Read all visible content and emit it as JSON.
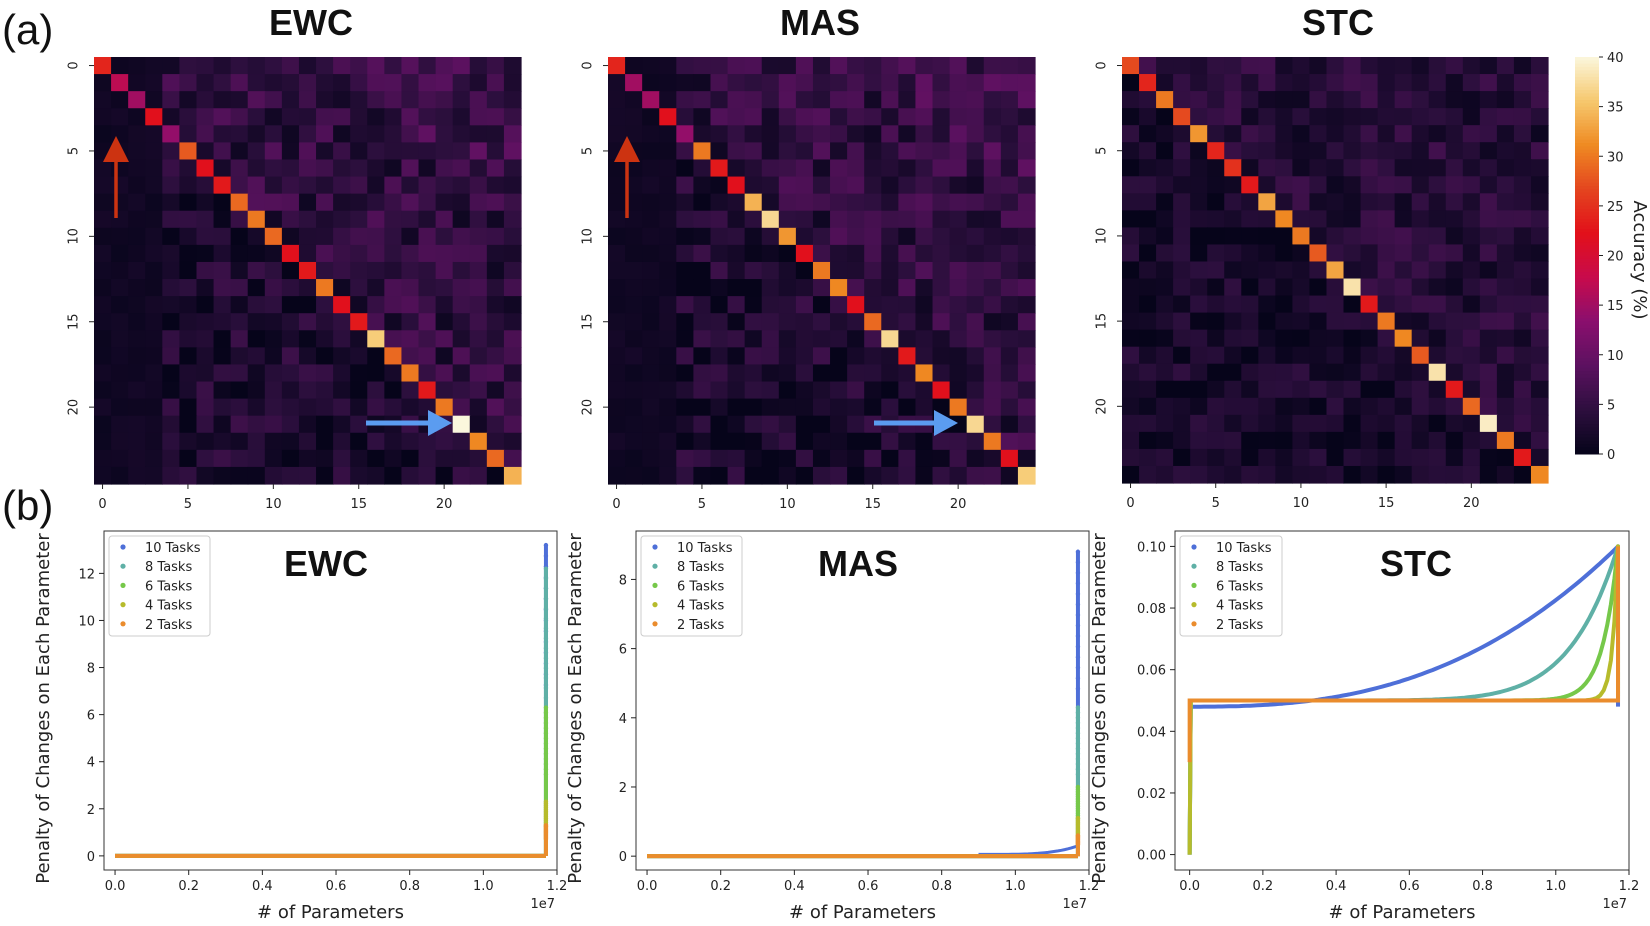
{
  "figure": {
    "label_a": "(a)",
    "label_b": "(b)"
  },
  "colors": {
    "arrow_up": "#cc3311",
    "arrow_right": "#5b9cf0",
    "cmap": [
      "#06041a",
      "#2d0f3e",
      "#5c1160",
      "#8a0f6e",
      "#c80b4c",
      "#e2101a",
      "#e4451f",
      "#ef8a22",
      "#f6c86e",
      "#fbf7dd"
    ],
    "series": {
      "10 Tasks": "#4e6fd8",
      "8 Tasks": "#5fb0a6",
      "6 Tasks": "#76c84a",
      "4 Tasks": "#b6bb2c",
      "2 Tasks": "#ea8c2d"
    }
  },
  "colorbar": {
    "label": "Accuracy (%)",
    "ticks": [
      "0",
      "5",
      "10",
      "15",
      "20",
      "25",
      "30",
      "35",
      "40"
    ],
    "vmin": 0,
    "vmax": 40
  },
  "chart_data": [
    {
      "type": "heatmap",
      "title": "EWC",
      "n": 25,
      "xticks": [
        "0",
        "5",
        "10",
        "15",
        "20"
      ],
      "yticks": [
        "0",
        "5",
        "10",
        "15",
        "20"
      ],
      "diagonal": [
        24,
        17,
        15,
        22,
        14,
        28,
        22,
        23,
        29,
        30,
        29,
        22,
        23,
        30,
        22,
        23,
        36,
        29,
        30,
        23,
        30,
        40,
        31,
        29,
        34
      ],
      "off_diag_range": [
        0,
        10
      ],
      "low_columns": [
        0,
        1,
        2,
        3
      ]
    },
    {
      "type": "heatmap",
      "title": "MAS",
      "n": 25,
      "xticks": [
        "0",
        "5",
        "10",
        "15",
        "20"
      ],
      "yticks": [
        "0",
        "5",
        "10",
        "15",
        "20"
      ],
      "diagonal": [
        24,
        15,
        15,
        22,
        14,
        30,
        23,
        22,
        34,
        37,
        32,
        22,
        30,
        31,
        22,
        29,
        37,
        23,
        31,
        22,
        30,
        37,
        30,
        22,
        36
      ],
      "off_diag_range": [
        0,
        10
      ],
      "low_columns": [
        0,
        1,
        2,
        3
      ]
    },
    {
      "type": "heatmap",
      "title": "STC",
      "n": 25,
      "xticks": [
        "0",
        "5",
        "10",
        "15",
        "20"
      ],
      "yticks": [
        "0",
        "5",
        "10",
        "15",
        "20"
      ],
      "diagonal": [
        27,
        24,
        30,
        27,
        32,
        24,
        25,
        23,
        33,
        31,
        30,
        28,
        33,
        38,
        23,
        30,
        31,
        28,
        38,
        23,
        29,
        39,
        30,
        23,
        31
      ],
      "off_diag_range": [
        0,
        8
      ],
      "low_columns": []
    },
    {
      "type": "scatter",
      "title": "EWC",
      "xlabel": "# of Parameters",
      "ylabel": "Penalty of Changes on Each Parameter",
      "xlim": [
        -0.03,
        1.2
      ],
      "ylim": [
        -0.6,
        13.8
      ],
      "xscale_label": "1e7",
      "xticks": [
        "0.0",
        "0.2",
        "0.4",
        "0.6",
        "0.8",
        "1.0",
        "1.2"
      ],
      "yticks": [
        "0",
        "2",
        "4",
        "6",
        "8",
        "10",
        "12"
      ],
      "series": [
        {
          "name": "10 Tasks",
          "baseline": 0,
          "knee": 11.7,
          "peak": 13.2,
          "curve": "spike"
        },
        {
          "name": "8 Tasks",
          "baseline": 0,
          "knee": 11.7,
          "peak": 12.2,
          "curve": "spike"
        },
        {
          "name": "6 Tasks",
          "baseline": 0,
          "knee": 11.7,
          "peak": 6.3,
          "curve": "spike"
        },
        {
          "name": "4 Tasks",
          "baseline": 0,
          "knee": 11.7,
          "peak": 2.3,
          "curve": "spike"
        },
        {
          "name": "2 Tasks",
          "baseline": 0,
          "knee": 11.7,
          "peak": 1.3,
          "curve": "spike"
        }
      ]
    },
    {
      "type": "scatter",
      "title": "MAS",
      "xlabel": "# of Parameters",
      "ylabel": "Penalty of Changes on Each Parameter",
      "xlim": [
        -0.03,
        1.2
      ],
      "ylim": [
        -0.4,
        9.4
      ],
      "xscale_label": "1e7",
      "xticks": [
        "0.0",
        "0.2",
        "0.4",
        "0.6",
        "0.8",
        "1.0",
        "1.2"
      ],
      "yticks": [
        "0",
        "2",
        "4",
        "6",
        "8"
      ],
      "series": [
        {
          "name": "10 Tasks",
          "baseline": 0,
          "knee": 11.7,
          "peak": 8.8,
          "curve": "spike_rise"
        },
        {
          "name": "8 Tasks",
          "baseline": 0,
          "knee": 11.7,
          "peak": 4.3,
          "curve": "spike"
        },
        {
          "name": "6 Tasks",
          "baseline": 0,
          "knee": 11.7,
          "peak": 2.0,
          "curve": "spike"
        },
        {
          "name": "4 Tasks",
          "baseline": 0,
          "knee": 11.7,
          "peak": 1.1,
          "curve": "spike"
        },
        {
          "name": "2 Tasks",
          "baseline": 0,
          "knee": 11.7,
          "peak": 0.6,
          "curve": "spike"
        }
      ]
    },
    {
      "type": "scatter",
      "title": "STC",
      "xlabel": "# of Parameters",
      "ylabel": "Penalty of Changes on Each Parameter",
      "xlim": [
        -0.04,
        1.2
      ],
      "ylim": [
        -0.005,
        0.105
      ],
      "xscale_label": "1e7",
      "xticks": [
        "0.0",
        "0.2",
        "0.4",
        "0.6",
        "0.8",
        "1.0",
        "1.2"
      ],
      "yticks": [
        "0.00",
        "0.02",
        "0.04",
        "0.06",
        "0.08",
        "0.10"
      ],
      "series": [
        {
          "name": "10 Tasks",
          "start": 0.048,
          "end": 0.1,
          "power": 2.6,
          "curve": "sigmoid"
        },
        {
          "name": "8 Tasks",
          "start": 0.05,
          "end": 0.1,
          "power": 9,
          "curve": "sigmoid"
        },
        {
          "name": "6 Tasks",
          "start": 0.05,
          "end": 0.1,
          "power": 28,
          "curve": "sigmoid"
        },
        {
          "name": "4 Tasks",
          "start": 0.05,
          "end": 0.1,
          "power": 80,
          "curve": "sigmoid"
        },
        {
          "name": "2 Tasks",
          "start": 0.05,
          "end": 0.05,
          "power": 1,
          "curve": "flat_box"
        }
      ]
    }
  ]
}
